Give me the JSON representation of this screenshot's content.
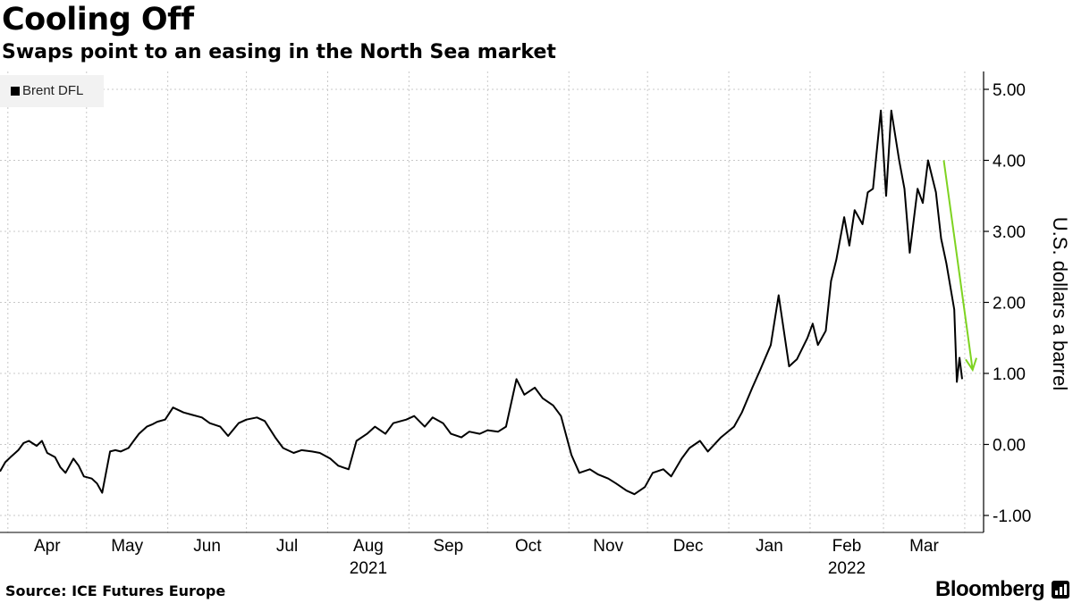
{
  "header": {
    "title": "Cooling Off",
    "subtitle": "Swaps point to an easing in the North Sea market"
  },
  "footer": {
    "source": "Source: ICE Futures Europe",
    "brand": "Bloomberg",
    "brand_icon": "bloomberg-terminal-icon"
  },
  "colors": {
    "series": "#000000",
    "arrow": "#7ed321",
    "legend_bg": "#f2f2f2",
    "grid": "#c8c8c8"
  },
  "chart_data": {
    "type": "line",
    "title": "Cooling Off",
    "subtitle": "Swaps point to an easing in the North Sea market",
    "ylabel": "U.S. dollars a barrel",
    "ylim": [
      -1.25,
      5.25
    ],
    "y_ticks": [
      "5.00",
      "4.00",
      "3.00",
      "2.00",
      "1.00",
      "0.00",
      "-1.00"
    ],
    "x_ticks": [
      "Apr",
      "May",
      "Jun",
      "Jul",
      "Aug",
      "Sep",
      "Oct",
      "Nov",
      "Dec",
      "Jan",
      "Feb",
      "Mar"
    ],
    "x_years": [
      "2021",
      "2022"
    ],
    "x_range": [
      "2021-03-29",
      "2022-03-31"
    ],
    "grid": true,
    "legend_position": "top-left",
    "series": [
      {
        "name": "Brent DFL",
        "x": [
          "2021-03-29",
          "2021-03-31",
          "2021-04-02",
          "2021-04-05",
          "2021-04-07",
          "2021-04-09",
          "2021-04-12",
          "2021-04-14",
          "2021-04-16",
          "2021-04-19",
          "2021-04-21",
          "2021-04-23",
          "2021-04-26",
          "2021-04-28",
          "2021-04-30",
          "2021-05-03",
          "2021-05-05",
          "2021-05-07",
          "2021-05-10",
          "2021-05-12",
          "2021-05-14",
          "2021-05-17",
          "2021-05-19",
          "2021-05-21",
          "2021-05-24",
          "2021-05-26",
          "2021-05-28",
          "2021-05-31",
          "2021-06-03",
          "2021-06-07",
          "2021-06-10",
          "2021-06-14",
          "2021-06-17",
          "2021-06-21",
          "2021-06-24",
          "2021-06-28",
          "2021-07-01",
          "2021-07-05",
          "2021-07-08",
          "2021-07-12",
          "2021-07-15",
          "2021-07-19",
          "2021-07-22",
          "2021-07-26",
          "2021-07-29",
          "2021-08-02",
          "2021-08-05",
          "2021-08-09",
          "2021-08-12",
          "2021-08-16",
          "2021-08-19",
          "2021-08-23",
          "2021-08-26",
          "2021-08-31",
          "2021-09-03",
          "2021-09-07",
          "2021-09-10",
          "2021-09-14",
          "2021-09-17",
          "2021-09-21",
          "2021-09-24",
          "2021-09-28",
          "2021-10-01",
          "2021-10-05",
          "2021-10-08",
          "2021-10-12",
          "2021-10-15",
          "2021-10-19",
          "2021-10-22",
          "2021-10-26",
          "2021-10-29",
          "2021-11-02",
          "2021-11-05",
          "2021-11-09",
          "2021-11-12",
          "2021-11-16",
          "2021-11-19",
          "2021-11-23",
          "2021-11-26",
          "2021-11-30",
          "2021-12-03",
          "2021-12-07",
          "2021-12-10",
          "2021-12-14",
          "2021-12-17",
          "2021-12-21",
          "2021-12-24",
          "2021-12-29",
          "2022-01-03",
          "2022-01-06",
          "2022-01-10",
          "2022-01-13",
          "2022-01-17",
          "2022-01-20",
          "2022-01-24",
          "2022-01-27",
          "2022-01-31",
          "2022-02-02",
          "2022-02-04",
          "2022-02-07",
          "2022-02-09",
          "2022-02-11",
          "2022-02-14",
          "2022-02-16",
          "2022-02-18",
          "2022-02-21",
          "2022-02-23",
          "2022-02-25",
          "2022-02-28",
          "2022-03-02",
          "2022-03-04",
          "2022-03-07",
          "2022-03-09",
          "2022-03-11",
          "2022-03-14",
          "2022-03-16",
          "2022-03-18",
          "2022-03-21",
          "2022-03-23",
          "2022-03-25",
          "2022-03-28",
          "2022-03-29",
          "2022-03-30",
          "2022-03-31"
        ],
        "values": [
          -0.38,
          -0.25,
          -0.18,
          -0.08,
          0.02,
          0.05,
          -0.02,
          0.05,
          -0.12,
          -0.18,
          -0.32,
          -0.4,
          -0.2,
          -0.3,
          -0.45,
          -0.48,
          -0.55,
          -0.68,
          -0.1,
          -0.08,
          -0.1,
          -0.05,
          0.05,
          0.15,
          0.25,
          0.28,
          0.32,
          0.35,
          0.52,
          0.45,
          0.42,
          0.38,
          0.3,
          0.25,
          0.12,
          0.3,
          0.35,
          0.38,
          0.33,
          0.1,
          -0.05,
          -0.12,
          -0.08,
          -0.1,
          -0.12,
          -0.2,
          -0.3,
          -0.35,
          0.05,
          0.15,
          0.25,
          0.15,
          0.3,
          0.35,
          0.4,
          0.25,
          0.38,
          0.3,
          0.15,
          0.1,
          0.18,
          0.15,
          0.2,
          0.18,
          0.25,
          0.92,
          0.7,
          0.8,
          0.65,
          0.55,
          0.4,
          -0.15,
          -0.4,
          -0.35,
          -0.42,
          -0.48,
          -0.55,
          -0.65,
          -0.7,
          -0.6,
          -0.4,
          -0.35,
          -0.45,
          -0.2,
          -0.05,
          0.05,
          -0.1,
          0.1,
          0.25,
          0.45,
          0.8,
          1.05,
          1.4,
          2.1,
          1.1,
          1.2,
          1.5,
          1.7,
          1.4,
          1.6,
          2.3,
          2.6,
          3.2,
          2.8,
          3.3,
          3.1,
          3.55,
          3.6,
          4.7,
          3.5,
          4.7,
          4.0,
          3.6,
          2.7,
          3.6,
          3.4,
          4.0,
          3.55,
          2.9,
          2.55,
          1.9,
          0.88,
          1.22,
          0.92
        ]
      }
    ],
    "annotations": [
      {
        "type": "arrow",
        "from": [
          "2022-03-24",
          4.0
        ],
        "to": [
          "2022-04-04",
          1.05
        ]
      }
    ]
  }
}
